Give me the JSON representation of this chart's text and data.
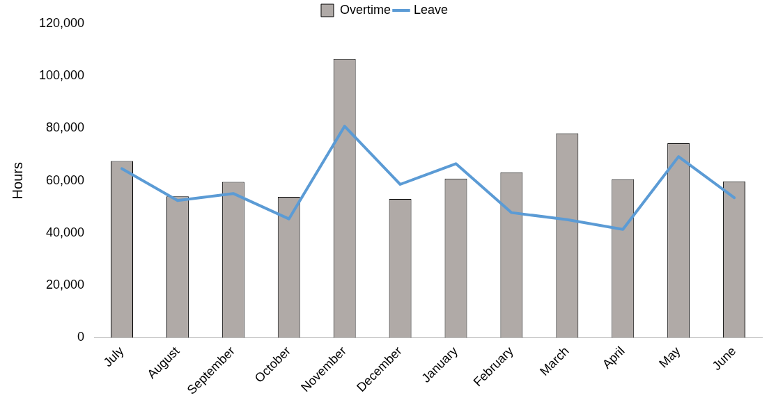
{
  "chart_data": {
    "type": "bar",
    "ylabel": "Hours",
    "categories": [
      "July",
      "August",
      "September",
      "October",
      "November",
      "December",
      "January",
      "February",
      "March",
      "April",
      "May",
      "June"
    ],
    "series": [
      {
        "name": "Overtime",
        "color": "#b0aaa7",
        "values": [
          67500,
          54000,
          59500,
          53800,
          106500,
          53000,
          60800,
          63200,
          78100,
          60500,
          74300,
          59700
        ]
      },
      {
        "name": "Leave",
        "type": "line",
        "color": "#5b9bd5",
        "values": [
          64600,
          52400,
          55100,
          45400,
          80800,
          58600,
          66500,
          47800,
          45100,
          41400,
          69200,
          53500
        ]
      }
    ],
    "ylim": [
      0,
      120000
    ],
    "yticks": [
      0,
      {
        "value": 20000,
        "label": "20,000"
      },
      {
        "value": 40000,
        "label": "40,000"
      },
      {
        "value": 60000,
        "label": "60,000"
      },
      {
        "value": 80000,
        "label": "80,000"
      },
      {
        "value": 100000,
        "label": "100,000"
      },
      {
        "value": 120000,
        "label": "120,000"
      }
    ],
    "grid": false,
    "legend": "top",
    "marker": "none"
  }
}
